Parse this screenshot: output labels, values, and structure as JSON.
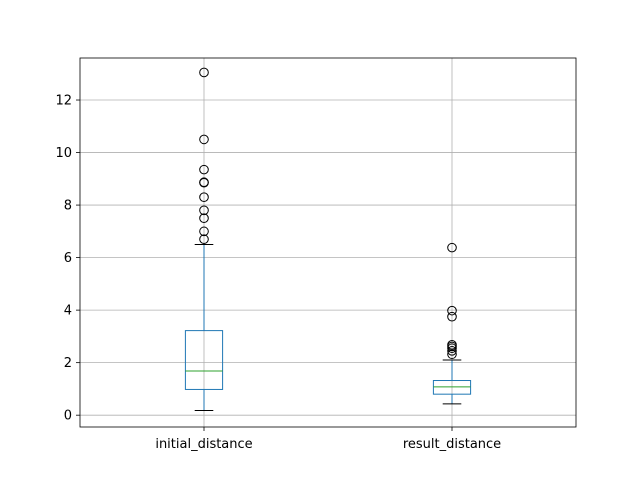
{
  "chart_data": {
    "type": "box",
    "categories": [
      "initial_distance",
      "result_distance"
    ],
    "ylim": [
      -0.45,
      13.6
    ],
    "yticks": [
      "0",
      "2",
      "4",
      "6",
      "8",
      "10",
      "12"
    ],
    "grid": true,
    "colors": {
      "box": "#1f77b4",
      "median": "#2ca02c",
      "whisker": "#1f77b4",
      "cap": "#000000",
      "flier": "#000000"
    },
    "boxes": [
      {
        "name": "initial_distance",
        "whisker_low": 0.18,
        "q1": 0.98,
        "median": 1.68,
        "q3": 3.22,
        "whisker_high": 6.5,
        "fliers": [
          6.7,
          7.0,
          7.5,
          7.8,
          8.3,
          8.85,
          8.87,
          9.35,
          10.5,
          13.05
        ]
      },
      {
        "name": "result_distance",
        "whisker_low": 0.43,
        "q1": 0.8,
        "median": 1.08,
        "q3": 1.32,
        "whisker_high": 2.1,
        "fliers": [
          2.32,
          2.45,
          2.55,
          2.62,
          2.68,
          3.75,
          3.98,
          6.38
        ]
      }
    ]
  }
}
